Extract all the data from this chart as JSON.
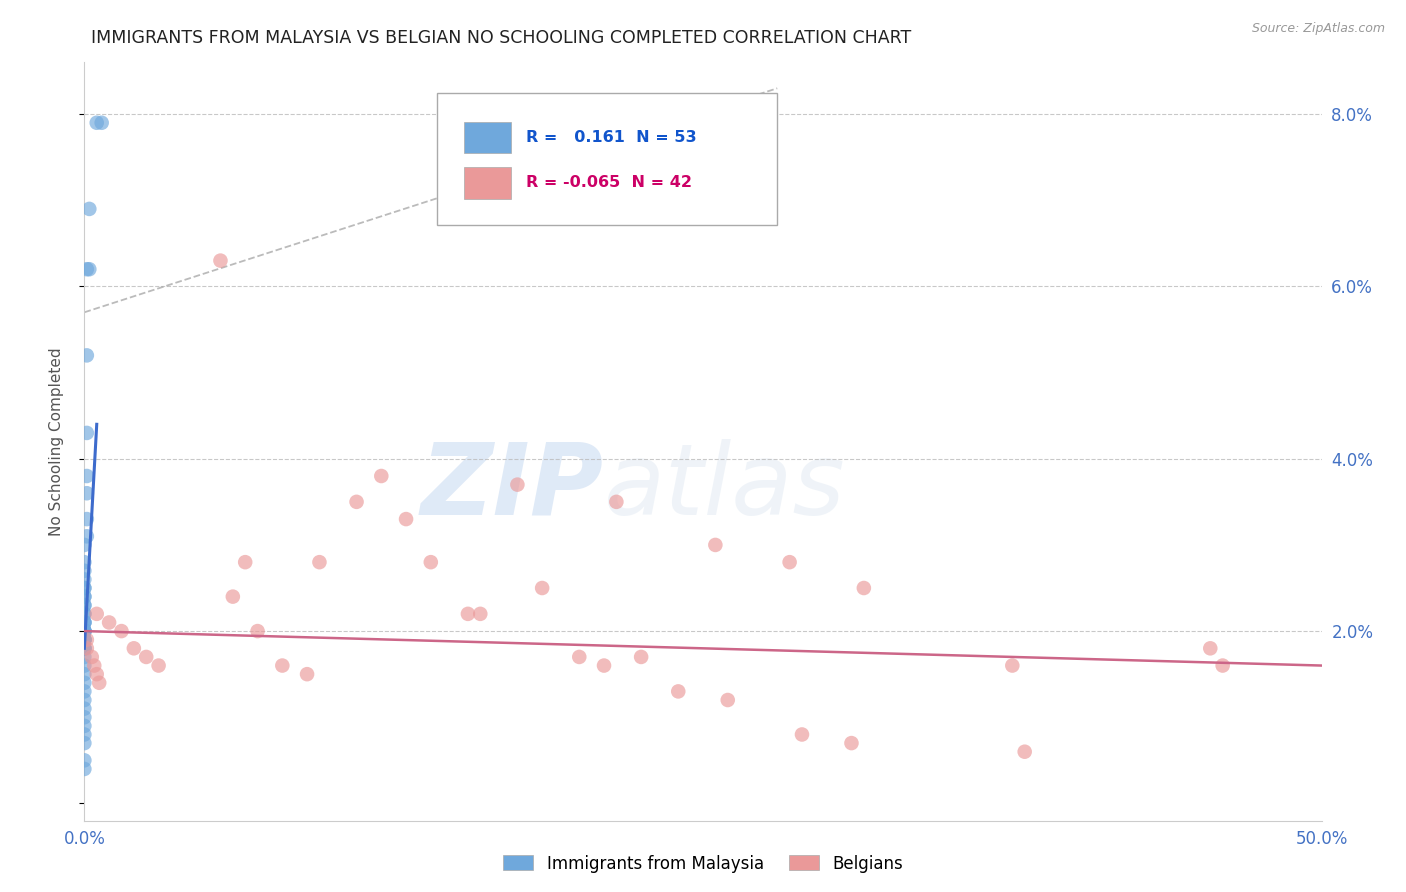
{
  "title": "IMMIGRANTS FROM MALAYSIA VS BELGIAN NO SCHOOLING COMPLETED CORRELATION CHART",
  "source": "Source: ZipAtlas.com",
  "ylabel": "No Schooling Completed",
  "watermark_zip": "ZIP",
  "watermark_atlas": "atlas",
  "xlim": [
    0.0,
    0.5
  ],
  "ylim": [
    -0.002,
    0.086
  ],
  "xticks": [
    0.0,
    0.5
  ],
  "yticks": [
    0.0,
    0.02,
    0.04,
    0.06,
    0.08
  ],
  "ytick_labels": [
    "",
    "2.0%",
    "4.0%",
    "6.0%",
    "8.0%"
  ],
  "xtick_labels": [
    "0.0%",
    "50.0%"
  ],
  "legend_r1_val": "0.161",
  "legend_n1": "N = 53",
  "legend_r2_val": "-0.065",
  "legend_n2": "N = 42",
  "blue_color": "#6fa8dc",
  "pink_color": "#ea9999",
  "blue_line_color": "#3d6bcc",
  "pink_line_color": "#cc6688",
  "dashed_line_color": "#aaaaaa",
  "title_color": "#222222",
  "axis_label_color": "#555555",
  "tick_color": "#4472c4",
  "grid_color": "#bbbbbb",
  "blue_scatter_x": [
    0.005,
    0.007,
    0.002,
    0.002,
    0.001,
    0.001,
    0.001,
    0.001,
    0.001,
    0.001,
    0.001,
    0.0,
    0.0,
    0.0,
    0.0,
    0.0,
    0.0,
    0.0,
    0.0,
    0.0,
    0.0,
    0.0,
    0.0,
    0.0,
    0.0,
    0.0,
    0.0,
    0.0,
    0.0,
    0.0,
    0.0,
    0.0,
    0.0,
    0.0,
    0.0,
    0.0,
    0.0,
    0.0,
    0.0,
    0.0,
    0.0,
    0.0,
    0.0,
    0.0,
    0.0,
    0.0,
    0.0,
    0.0,
    0.0,
    0.0,
    0.0,
    0.0,
    0.0
  ],
  "blue_scatter_y": [
    0.079,
    0.079,
    0.069,
    0.062,
    0.062,
    0.052,
    0.043,
    0.038,
    0.036,
    0.033,
    0.031,
    0.03,
    0.028,
    0.027,
    0.026,
    0.025,
    0.025,
    0.024,
    0.024,
    0.023,
    0.023,
    0.022,
    0.022,
    0.021,
    0.021,
    0.021,
    0.02,
    0.02,
    0.02,
    0.02,
    0.02,
    0.019,
    0.019,
    0.019,
    0.019,
    0.019,
    0.018,
    0.018,
    0.018,
    0.018,
    0.017,
    0.016,
    0.015,
    0.014,
    0.013,
    0.012,
    0.011,
    0.01,
    0.009,
    0.008,
    0.007,
    0.005,
    0.004
  ],
  "pink_scatter_x": [
    0.001,
    0.001,
    0.003,
    0.004,
    0.005,
    0.006,
    0.055,
    0.065,
    0.095,
    0.11,
    0.12,
    0.13,
    0.155,
    0.175,
    0.185,
    0.215,
    0.225,
    0.255,
    0.285,
    0.315,
    0.375,
    0.455,
    0.005,
    0.01,
    0.015,
    0.02,
    0.025,
    0.03,
    0.06,
    0.07,
    0.08,
    0.09,
    0.14,
    0.16,
    0.2,
    0.21,
    0.24,
    0.26,
    0.29,
    0.31,
    0.38,
    0.46
  ],
  "pink_scatter_y": [
    0.019,
    0.018,
    0.017,
    0.016,
    0.015,
    0.014,
    0.063,
    0.028,
    0.028,
    0.035,
    0.038,
    0.033,
    0.022,
    0.037,
    0.025,
    0.035,
    0.017,
    0.03,
    0.028,
    0.025,
    0.016,
    0.018,
    0.022,
    0.021,
    0.02,
    0.018,
    0.017,
    0.016,
    0.024,
    0.02,
    0.016,
    0.015,
    0.028,
    0.022,
    0.017,
    0.016,
    0.013,
    0.012,
    0.008,
    0.007,
    0.006,
    0.016
  ],
  "blue_trend_x": [
    0.0,
    0.005
  ],
  "blue_trend_y": [
    0.018,
    0.044
  ],
  "pink_trend_x": [
    0.0,
    0.5
  ],
  "pink_trend_y": [
    0.02,
    0.016
  ],
  "dashed_trend_x": [
    0.0,
    0.28
  ],
  "dashed_trend_y": [
    0.057,
    0.083
  ]
}
